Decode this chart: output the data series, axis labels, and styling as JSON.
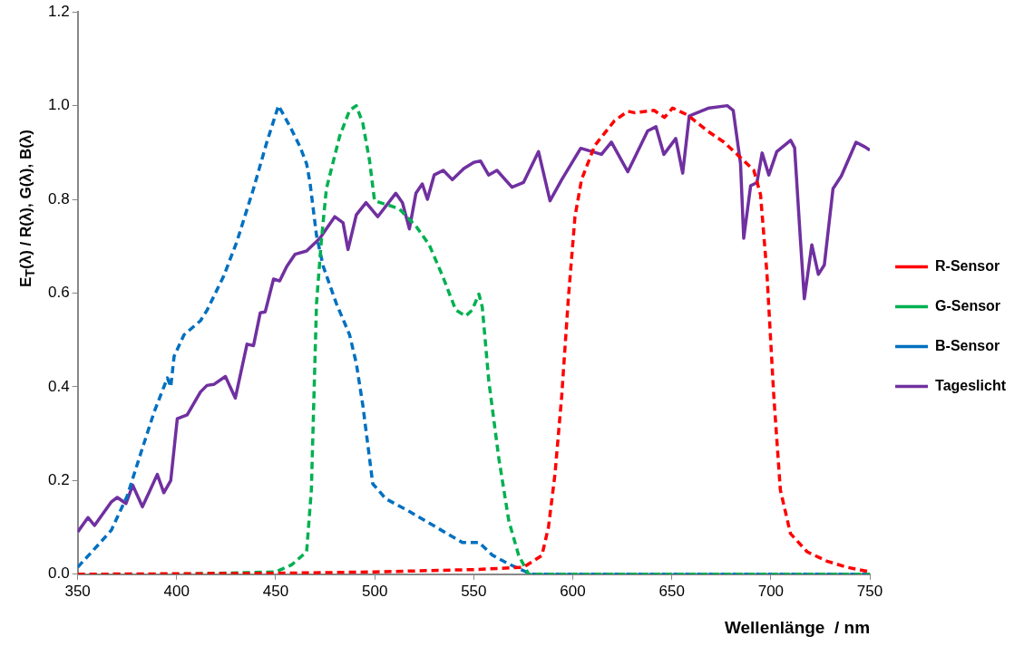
{
  "chart_data": {
    "type": "line",
    "xlabel": "Wellenlänge  / nm",
    "ylabel": "E$_{T}$(λ) / R(λ), G(λ), B(λ)",
    "xlim": [
      350,
      750
    ],
    "xticks": [
      350,
      400,
      450,
      500,
      550,
      600,
      650,
      700,
      750
    ],
    "ylim": [
      0,
      1.2
    ],
    "yticks": [
      {
        "value": 0,
        "label": "0.0"
      },
      {
        "value": 0.2,
        "label": "0.2"
      },
      {
        "value": 0.4,
        "label": "0.4"
      },
      {
        "value": 0.6,
        "label": "0.6"
      },
      {
        "value": 0.8,
        "label": "0.8"
      },
      {
        "value": 1,
        "label": "1.0"
      },
      {
        "value": 1.2,
        "label": "1.2"
      }
    ],
    "grid": false,
    "legend": "right",
    "marker": "none",
    "series": [
      {
        "name": "R-Sensor",
        "color": "#ff0000",
        "line_style": "dashed",
        "x": [
          350,
          450,
          500,
          550,
          575,
          580,
          584.4,
          587.7,
          591,
          594.4,
          597.8,
          601.1,
          604.4,
          611.1,
          621.1,
          627.8,
          631.2,
          641,
          646.3,
          650.4,
          658,
          668,
          676.4,
          683,
          691.4,
          694.8,
          698,
          701.5,
          704.8,
          709.9,
          718.3,
          728.3,
          738.4,
          750
        ],
        "values": [
          0,
          0.002,
          0.005,
          0.01,
          0.015,
          0.028,
          0.04,
          0.1,
          0.213,
          0.38,
          0.591,
          0.763,
          0.842,
          0.915,
          0.968,
          0.988,
          0.985,
          0.99,
          0.975,
          0.995,
          0.98,
          0.946,
          0.922,
          0.896,
          0.862,
          0.81,
          0.644,
          0.38,
          0.18,
          0.087,
          0.048,
          0.028,
          0.015,
          0.005
        ]
      },
      {
        "name": "G-Sensor",
        "color": "#00b050",
        "line_style": "dashed",
        "x": [
          350,
          400,
          450,
          458,
          465.6,
          468,
          470.6,
          473,
          475.6,
          482.3,
          487.3,
          490.7,
          494,
          497.4,
          499.9,
          507.4,
          512.4,
          520.8,
          527.5,
          534.2,
          540.9,
          545.9,
          549.2,
          552.6,
          554.3,
          557.6,
          562.7,
          567.7,
          572.7,
          577.7,
          650,
          750
        ],
        "values": [
          0,
          0,
          0.005,
          0.02,
          0.048,
          0.18,
          0.578,
          0.71,
          0.823,
          0.935,
          0.99,
          1,
          0.962,
          0.882,
          0.797,
          0.787,
          0.78,
          0.743,
          0.703,
          0.637,
          0.564,
          0.551,
          0.564,
          0.598,
          0.57,
          0.412,
          0.246,
          0.114,
          0.04,
          0,
          0,
          0
        ]
      },
      {
        "name": "B-Sensor",
        "color": "#0070c0",
        "line_style": "dashed",
        "x": [
          350,
          360,
          367,
          375,
          382,
          388.6,
          395.3,
          397,
          398.7,
          403.7,
          412,
          415.4,
          423.8,
          430.4,
          438.8,
          445.5,
          451.4,
          457.3,
          462.3,
          465.6,
          467.3,
          470.6,
          474,
          480.6,
          487.3,
          490.7,
          494,
          499,
          505.6,
          517.5,
          530.8,
          544.2,
          552.6,
          559.3,
          567.6,
          579,
          650,
          750
        ],
        "values": [
          0.015,
          0.061,
          0.094,
          0.167,
          0.26,
          0.346,
          0.419,
          0.4,
          0.465,
          0.511,
          0.541,
          0.564,
          0.637,
          0.71,
          0.823,
          0.922,
          1,
          0.955,
          0.912,
          0.876,
          0.836,
          0.723,
          0.657,
          0.578,
          0.511,
          0.45,
          0.36,
          0.193,
          0.161,
          0.134,
          0.101,
          0.068,
          0.068,
          0.041,
          0.022,
          0,
          0,
          0
        ]
      },
      {
        "name": "Tageslicht",
        "color": "#7030a0",
        "line_style": "solid",
        "x": [
          350,
          355.2,
          358.5,
          366.9,
          370,
          374.4,
          377.8,
          382.7,
          386,
          390.2,
          393.5,
          397,
          400.3,
          405.3,
          412,
          415.3,
          418.7,
          424.6,
          429.6,
          435.5,
          438.8,
          442.2,
          444.7,
          448.9,
          452,
          455.6,
          459.8,
          465.6,
          472.3,
          479.8,
          484,
          486.5,
          490.7,
          495.6,
          501.5,
          510.6,
          514,
          517.5,
          520.8,
          524,
          526.6,
          530,
          534.6,
          539.2,
          545,
          550,
          553.4,
          557.5,
          561.7,
          569.3,
          575.1,
          582.7,
          588.5,
          594.4,
          604,
          614.5,
          619.5,
          627.8,
          637.8,
          642,
          646,
          652,
          655.5,
          658.8,
          668.8,
          678,
          681,
          684.7,
          686.3,
          689.8,
          693,
          695.6,
          699,
          703,
          710,
          712,
          715,
          716.9,
          720.7,
          724,
          727,
          731.4,
          735.6,
          743,
          747.5,
          750
        ],
        "values": [
          0.09,
          0.121,
          0.104,
          0.154,
          0.164,
          0.151,
          0.19,
          0.144,
          0.174,
          0.213,
          0.174,
          0.2,
          0.332,
          0.34,
          0.389,
          0.403,
          0.405,
          0.422,
          0.376,
          0.491,
          0.488,
          0.558,
          0.56,
          0.63,
          0.626,
          0.657,
          0.683,
          0.69,
          0.717,
          0.763,
          0.75,
          0.693,
          0.767,
          0.793,
          0.763,
          0.813,
          0.793,
          0.737,
          0.813,
          0.833,
          0.8,
          0.852,
          0.862,
          0.842,
          0.866,
          0.879,
          0.882,
          0.852,
          0.862,
          0.826,
          0.836,
          0.902,
          0.797,
          0.842,
          0.909,
          0.896,
          0.922,
          0.859,
          0.946,
          0.955,
          0.896,
          0.93,
          0.856,
          0.978,
          0.995,
          1,
          0.99,
          0.876,
          0.717,
          0.829,
          0.836,
          0.899,
          0.852,
          0.902,
          0.926,
          0.91,
          0.71,
          0.588,
          0.703,
          0.64,
          0.66,
          0.823,
          0.85,
          0.922,
          0.912,
          0.905
        ]
      }
    ]
  }
}
